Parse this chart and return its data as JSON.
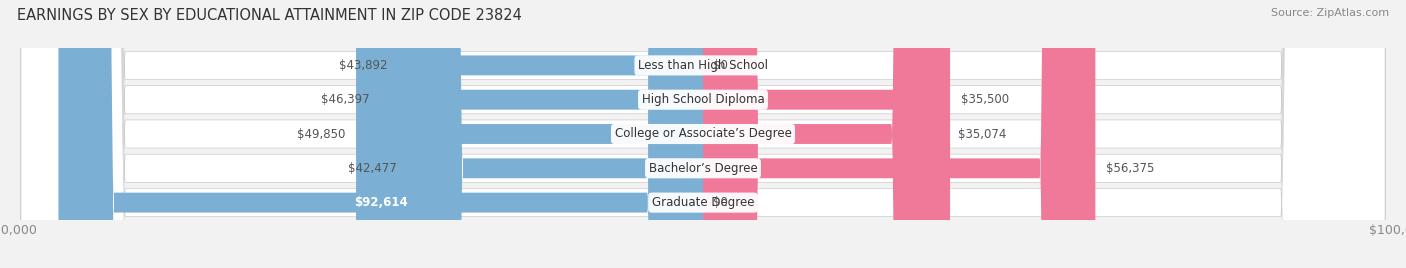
{
  "title": "EARNINGS BY SEX BY EDUCATIONAL ATTAINMENT IN ZIP CODE 23824",
  "source": "Source: ZipAtlas.com",
  "categories": [
    "Less than High School",
    "High School Diploma",
    "College or Associate’s Degree",
    "Bachelor’s Degree",
    "Graduate Degree"
  ],
  "male_values": [
    43892,
    46397,
    49850,
    42477,
    92614
  ],
  "female_values": [
    0,
    35500,
    35074,
    56375,
    0
  ],
  "max_value": 100000,
  "male_color": "#7bafd4",
  "female_color": "#f07898",
  "bg_color": "#f2f2f2",
  "row_bg_color": "#e8e8e8",
  "label_dark": "#555555",
  "label_white": "#ffffff",
  "title_color": "#333333",
  "axis_label_color": "#888888",
  "legend_male_color": "#7bafd4",
  "legend_female_color": "#f07898"
}
